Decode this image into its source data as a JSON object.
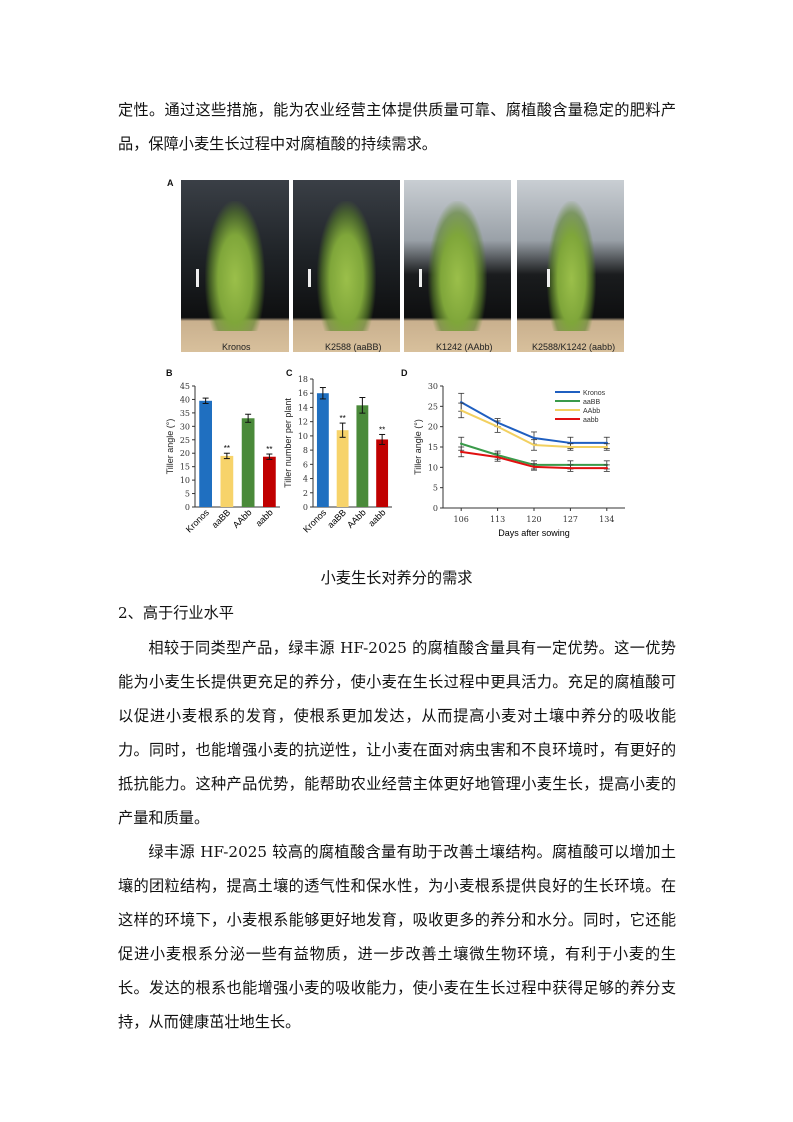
{
  "intro_text": "定性。通过这些措施，能为农业经营主体提供质量可靠、腐植酸含量稳定的肥料产品，保障小麦生长过程中对腐植酸的持续需求。",
  "figure": {
    "panel_labels": {
      "a": "A",
      "b": "B",
      "c": "C",
      "d": "D"
    },
    "photos": [
      {
        "label": "Kronos"
      },
      {
        "label": "K2588 (aaBB)"
      },
      {
        "label": "K1242 (AAbb)"
      },
      {
        "label": "K2588/K1242 (aabb)"
      }
    ],
    "caption": "小麦生长对养分的需求"
  },
  "chart_data": [
    {
      "type": "bar",
      "panel": "B",
      "categories": [
        "Kronos",
        "aaBB",
        "AAbb",
        "aabb"
      ],
      "values": [
        39.5,
        19,
        33,
        18.7
      ],
      "errors": [
        1,
        1,
        1.5,
        1
      ],
      "significance": [
        "",
        "**",
        "",
        "**"
      ],
      "colors": [
        "#1f6fc0",
        "#f7d36a",
        "#4a8a3a",
        "#c00000"
      ],
      "ylabel": "Tiller angle (°)",
      "ylim": [
        0,
        45
      ],
      "yticks": [
        0,
        5,
        10,
        15,
        20,
        25,
        30,
        35,
        40,
        45
      ]
    },
    {
      "type": "bar",
      "panel": "C",
      "categories": [
        "Kronos",
        "aaBB",
        "AAbb",
        "aabb"
      ],
      "values": [
        16,
        10.8,
        14.3,
        9.5
      ],
      "errors": [
        0.8,
        1,
        1.1,
        0.7
      ],
      "significance": [
        "",
        "**",
        "",
        "**"
      ],
      "colors": [
        "#1f6fc0",
        "#f7d36a",
        "#4a8a3a",
        "#c00000"
      ],
      "ylabel": "Tiller number per plant",
      "ylim": [
        0,
        18
      ],
      "yticks": [
        0,
        2,
        4,
        6,
        8,
        10,
        12,
        14,
        16,
        18
      ]
    },
    {
      "type": "line",
      "panel": "D",
      "x": [
        106,
        113,
        120,
        127,
        134
      ],
      "xlabel": "Days after sowing",
      "ylabel": "Tiller angle (°)",
      "ylim": [
        0,
        30
      ],
      "yticks": [
        0,
        5,
        10,
        15,
        20,
        25,
        30
      ],
      "legend": "top-right",
      "series": [
        {
          "name": "Kronos",
          "color": "#1f5fc0",
          "values": [
            26,
            21,
            17.2,
            16,
            16
          ],
          "errors": [
            2.2,
            1,
            1.5,
            1.4,
            1.4
          ]
        },
        {
          "name": "aaBB",
          "color": "#3a9a4a",
          "values": [
            15.8,
            13,
            10.6,
            10.6,
            10.6
          ],
          "errors": [
            1.6,
            1,
            1,
            1,
            1
          ]
        },
        {
          "name": "AAbb",
          "color": "#f2d060",
          "values": [
            24,
            20,
            15.5,
            15,
            15
          ],
          "errors": [
            1.8,
            1.4,
            1.3,
            0.8,
            0.8
          ]
        },
        {
          "name": "aabb",
          "color": "#e01010",
          "values": [
            13.8,
            12.5,
            10.1,
            9.8,
            9.8
          ],
          "errors": [
            1.2,
            1,
            0.8,
            0.8,
            0.8
          ]
        }
      ]
    }
  ],
  "section_heading": "2、高于行业水平",
  "paragraphs": [
    "相较于同类型产品，绿丰源 HF-2025 的腐植酸含量具有一定优势。这一优势能为小麦生长提供更充足的养分，使小麦在生长过程中更具活力。充足的腐植酸可以促进小麦根系的发育，使根系更加发达，从而提高小麦对土壤中养分的吸收能力。同时，也能增强小麦的抗逆性，让小麦在面对病虫害和不良环境时，有更好的抵抗能力。这种产品优势，能帮助农业经营主体更好地管理小麦生长，提高小麦的产量和质量。",
    "绿丰源 HF-2025 较高的腐植酸含量有助于改善土壤结构。腐植酸可以增加土壤的团粒结构，提高土壤的透气性和保水性，为小麦根系提供良好的生长环境。在这样的环境下，小麦根系能够更好地发育，吸收更多的养分和水分。同时，它还能促进小麦根系分泌一些有益物质，进一步改善土壤微生物环境，有利于小麦的生长。发达的根系也能增强小麦的吸收能力，使小麦在生长过程中获得足够的养分支持，从而健康茁壮地生长。"
  ]
}
